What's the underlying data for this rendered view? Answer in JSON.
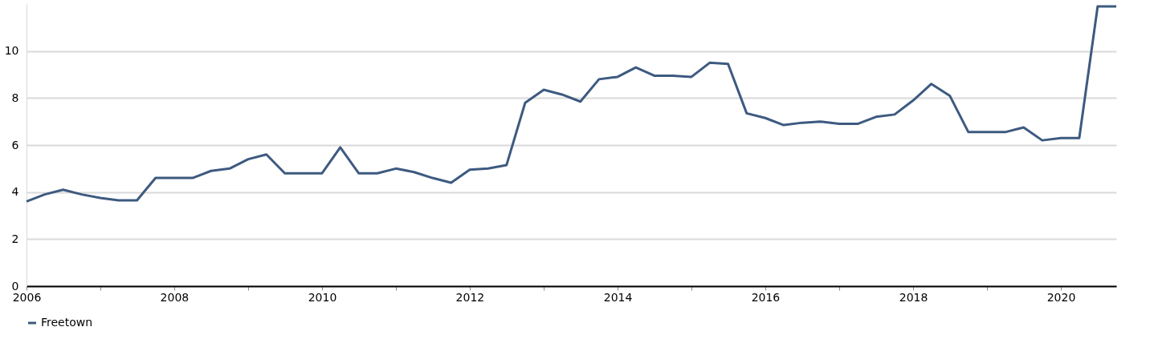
{
  "chart_data": {
    "type": "line",
    "x": [
      "2006-01",
      "2006-04",
      "2006-07",
      "2006-10",
      "2007-01",
      "2007-04",
      "2007-07",
      "2007-10",
      "2008-01",
      "2008-04",
      "2008-07",
      "2008-10",
      "2009-01",
      "2009-04",
      "2009-07",
      "2009-10",
      "2010-01",
      "2010-04",
      "2010-07",
      "2010-10",
      "2011-01",
      "2011-04",
      "2011-07",
      "2011-10",
      "2012-01",
      "2012-04",
      "2012-07",
      "2012-10",
      "2013-01",
      "2013-04",
      "2013-07",
      "2013-10",
      "2014-01",
      "2014-04",
      "2014-07",
      "2014-10",
      "2015-01",
      "2015-04",
      "2015-07",
      "2015-10",
      "2016-01",
      "2016-04",
      "2016-07",
      "2016-10",
      "2017-01",
      "2017-04",
      "2017-07",
      "2017-10",
      "2018-01",
      "2018-04",
      "2018-07",
      "2018-10",
      "2019-01",
      "2019-04",
      "2019-07",
      "2019-10",
      "2020-01",
      "2020-04",
      "2020-07",
      "2020-10"
    ],
    "series": [
      {
        "name": "Freetown",
        "color": "#3d5a80",
        "values": [
          3.6,
          3.9,
          4.1,
          3.9,
          3.75,
          3.65,
          3.65,
          4.6,
          4.6,
          4.6,
          4.9,
          5.0,
          5.4,
          5.6,
          4.8,
          4.8,
          4.8,
          5.9,
          4.8,
          4.8,
          5.0,
          4.85,
          4.6,
          4.4,
          4.95,
          5.0,
          5.15,
          7.8,
          8.35,
          8.15,
          7.85,
          8.8,
          8.9,
          9.3,
          8.95,
          8.95,
          8.9,
          9.5,
          9.45,
          7.35,
          7.15,
          6.85,
          6.95,
          7.0,
          6.9,
          6.9,
          7.2,
          7.3,
          7.9,
          8.6,
          8.1,
          6.55,
          6.55,
          6.55,
          6.75,
          6.2,
          6.3,
          6.3,
          11.9,
          11.9
        ]
      }
    ],
    "xlim": [
      "2006-01",
      "2020-10"
    ],
    "xticks": [
      {
        "value": "2006",
        "label": "2006"
      },
      {
        "value": "2007",
        "label": null
      },
      {
        "value": "2008",
        "label": "2008"
      },
      {
        "value": "2009",
        "label": null
      },
      {
        "value": "2010",
        "label": "2010"
      },
      {
        "value": "2011",
        "label": null
      },
      {
        "value": "2012",
        "label": "2012"
      },
      {
        "value": "2013",
        "label": null
      },
      {
        "value": "2014",
        "label": "2014"
      },
      {
        "value": "2015",
        "label": null
      },
      {
        "value": "2016",
        "label": "2016"
      },
      {
        "value": "2017",
        "label": null
      },
      {
        "value": "2018",
        "label": "2018"
      },
      {
        "value": "2019",
        "label": null
      },
      {
        "value": "2020",
        "label": "2020"
      }
    ],
    "ylim": [
      0,
      12
    ],
    "yticks": [
      0,
      2,
      4,
      6,
      8,
      10
    ],
    "grid": "y",
    "legend": "bottom",
    "marker": "none",
    "line_style": "solid"
  }
}
